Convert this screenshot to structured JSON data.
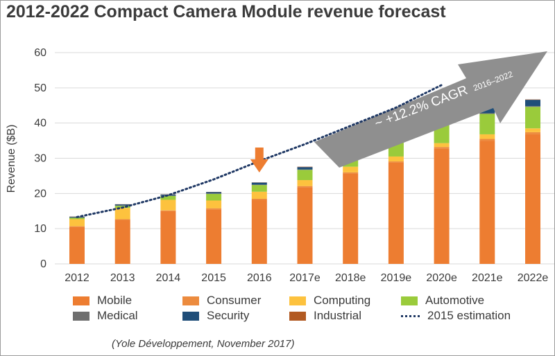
{
  "title": "2012-2022 Compact Camera Module revenue forecast",
  "source": "(Yole Développement, November 2017)",
  "colors": {
    "mobile": "#ed7d31",
    "consumer": "#ec8b3e",
    "computing": "#fdc23e",
    "automotive": "#9acb3b",
    "medical": "#6f6f6f",
    "security": "#1f4e79",
    "industrial": "#b25a22",
    "estimation": "#1f3864",
    "arrow": "#8f8f8f",
    "marker": "#ed7d31",
    "grid": "#d9d9d9"
  },
  "legend": [
    {
      "label": "Mobile",
      "color": "#ed7d31",
      "kind": "box"
    },
    {
      "label": "Consumer",
      "color": "#ec8b3e",
      "kind": "box"
    },
    {
      "label": "Computing",
      "color": "#fdc23e",
      "kind": "box"
    },
    {
      "label": "Automotive",
      "color": "#9acb3b",
      "kind": "box"
    },
    {
      "label": "Medical",
      "color": "#6f6f6f",
      "kind": "box"
    },
    {
      "label": "Security",
      "color": "#1f4e79",
      "kind": "box"
    },
    {
      "label": "Industrial",
      "color": "#b25a22",
      "kind": "box"
    },
    {
      "label": "2015 estimation",
      "color": "#1f3864",
      "kind": "dotted-line"
    }
  ],
  "chart_data": {
    "type": "bar",
    "stacked": true,
    "ylabel": "Revenue ($B)",
    "xlabel": "",
    "ylim": [
      0,
      60
    ],
    "yticks": [
      0,
      10,
      20,
      30,
      40,
      50,
      60
    ],
    "grid": true,
    "legend_position": "bottom",
    "categories": [
      "2012",
      "2013",
      "2014",
      "2015",
      "2016",
      "2017e",
      "2018e",
      "2019e",
      "2020e",
      "2021e",
      "2022e"
    ],
    "series": [
      {
        "name": "Mobile",
        "values": [
          10.5,
          12.5,
          15.0,
          15.5,
          18.2,
          21.8,
          25.7,
          28.8,
          32.8,
          35.0,
          36.8
        ]
      },
      {
        "name": "Consumer",
        "values": [
          0.2,
          0.2,
          0.2,
          0.3,
          0.3,
          0.3,
          0.3,
          0.3,
          0.4,
          0.5,
          0.6
        ]
      },
      {
        "name": "Computing",
        "values": [
          2.0,
          3.2,
          3.0,
          2.2,
          2.0,
          1.7,
          1.6,
          1.4,
          1.1,
          1.3,
          1.1
        ]
      },
      {
        "name": "Automotive",
        "values": [
          0.4,
          0.6,
          1.1,
          1.9,
          1.9,
          2.9,
          3.8,
          4.8,
          5.4,
          5.8,
          6.1
        ]
      },
      {
        "name": "Medical",
        "values": [
          0.1,
          0.1,
          0.1,
          0.1,
          0.1,
          0.1,
          0.2,
          0.2,
          0.2,
          0.2,
          0.2
        ]
      },
      {
        "name": "Security",
        "values": [
          0.2,
          0.3,
          0.3,
          0.4,
          0.6,
          0.7,
          0.9,
          1.1,
          1.3,
          1.6,
          1.8
        ]
      },
      {
        "name": "Industrial",
        "values": [
          0.05,
          0.05,
          0.05,
          0.05,
          0.05,
          0.1,
          0.1,
          0.1,
          0.1,
          0.1,
          0.1
        ]
      }
    ],
    "estimation_2015": {
      "name": "2015 estimation",
      "x": [
        "2012",
        "2013",
        "2014",
        "2015",
        "2016",
        "2017e",
        "2018e",
        "2019e",
        "2020e"
      ],
      "values": [
        13.3,
        16.0,
        19.5,
        24.0,
        29.2,
        34.0,
        39.2,
        44.4,
        50.8
      ]
    },
    "highlight_category": "2016",
    "cagr_annotation": {
      "text": "~ +12.2% CAGR",
      "period": "2016–2022"
    }
  }
}
